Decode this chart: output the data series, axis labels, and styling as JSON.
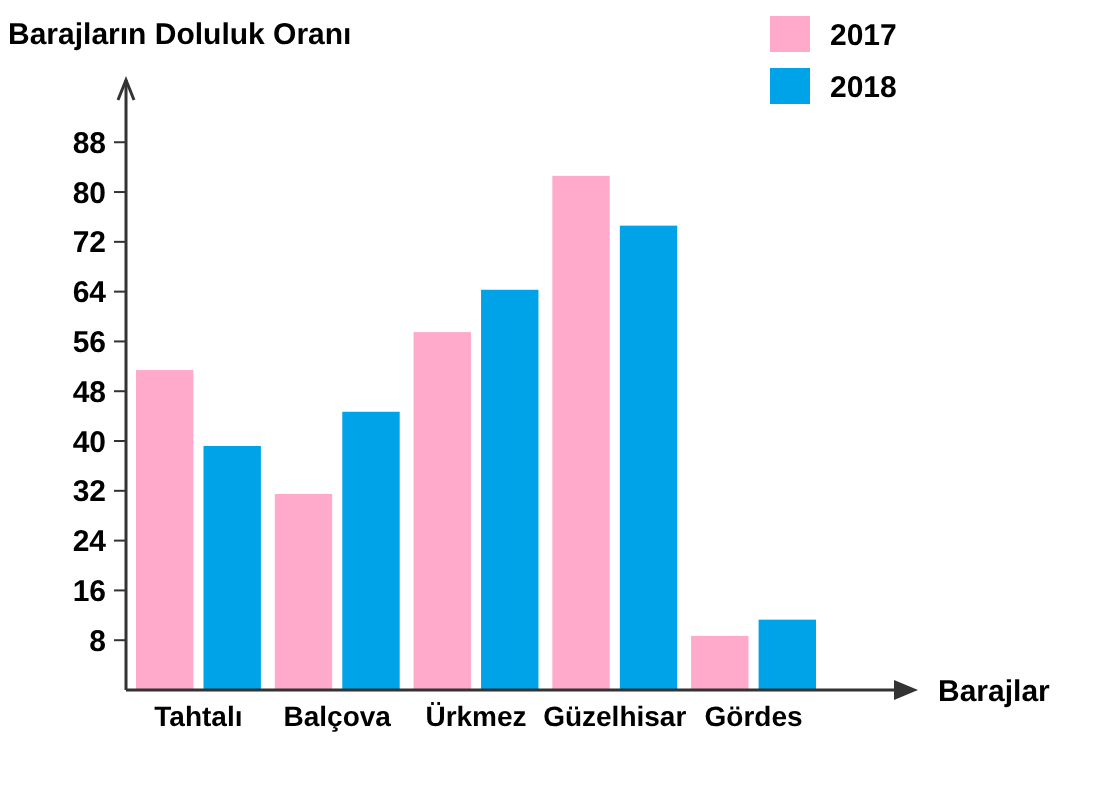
{
  "chart_data": {
    "type": "bar",
    "ylabel": "Barajların Doluluk Oranı",
    "xlabel": "Barajlar",
    "categories": [
      "Tahtalı",
      "Balçova",
      "Ürkmez",
      "Güzelhisar",
      "Gördes"
    ],
    "series": [
      {
        "name": "2017",
        "color": "#ffaacb",
        "values": [
          51.4,
          31.5,
          57.5,
          82.6,
          8.7
        ]
      },
      {
        "name": "2018",
        "color": "#00a2e8",
        "values": [
          39.2,
          44.7,
          64.3,
          74.6,
          11.3
        ]
      }
    ],
    "ylim": [
      0,
      98
    ],
    "yticks": [
      8,
      16,
      24,
      32,
      40,
      48,
      56,
      64,
      72,
      80,
      88
    ],
    "grid": false,
    "legend": "top right"
  }
}
